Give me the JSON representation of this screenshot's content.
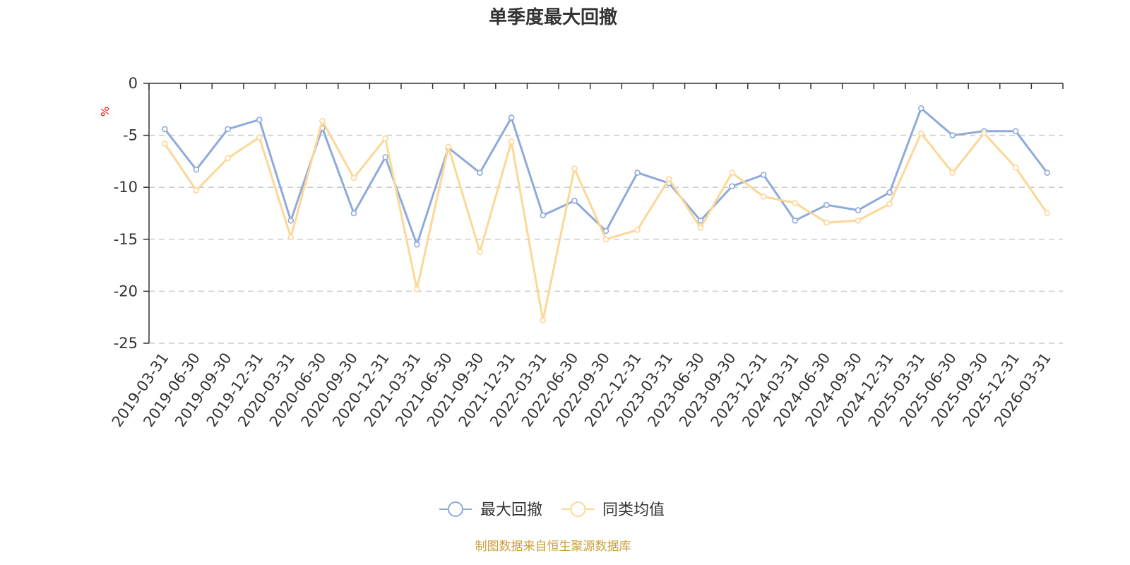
{
  "chart_data": {
    "type": "line",
    "title": "单季度最大回撤",
    "ylabel": "%",
    "ylim": [
      -25,
      0
    ],
    "yticks": [
      0,
      -5,
      -10,
      -15,
      -20,
      -25
    ],
    "grid": true,
    "legend_position": "bottom",
    "categories": [
      "2019-03-31",
      "2019-06-30",
      "2019-09-30",
      "2019-12-31",
      "2020-03-31",
      "2020-06-30",
      "2020-09-30",
      "2020-12-31",
      "2021-03-31",
      "2021-06-30",
      "2021-09-30",
      "2021-12-31",
      "2022-03-31",
      "2022-06-30",
      "2022-09-30",
      "2022-12-31",
      "2023-03-31",
      "2023-06-30",
      "2023-09-30",
      "2023-12-31",
      "2024-03-31",
      "2024-06-30",
      "2024-09-30",
      "2024-12-31",
      "2025-03-31",
      "2025-06-30",
      "2025-09-30",
      "2025-12-31",
      "2026-03-31"
    ],
    "series": [
      {
        "name": "最大回撤",
        "color": "#8EAADB",
        "values": [
          -4.4,
          -8.3,
          -4.4,
          -3.5,
          -13.2,
          -4.3,
          -12.5,
          -7.1,
          -15.5,
          -6.2,
          -8.6,
          -3.3,
          -12.7,
          -11.3,
          -14.2,
          -8.6,
          -9.6,
          -13.2,
          -9.9,
          -8.8,
          -13.2,
          -11.7,
          -12.2,
          -10.5,
          -2.4,
          -5.0,
          -4.6,
          -4.6,
          -8.6
        ]
      },
      {
        "name": "同类均值",
        "color": "#FCD796",
        "values": [
          -5.8,
          -10.3,
          -7.2,
          -5.2,
          -14.8,
          -3.6,
          -9.1,
          -5.3,
          -19.8,
          -6.1,
          -16.2,
          -5.6,
          -22.8,
          -8.2,
          -15.0,
          -14.1,
          -9.2,
          -13.9,
          -8.6,
          -10.9,
          -11.5,
          -13.4,
          -13.2,
          -11.6,
          -4.8,
          -8.6,
          -4.8,
          -8.1,
          -12.5
        ]
      }
    ]
  },
  "footer": {
    "source_text": "制图数据来自恒生聚源数据库"
  },
  "colors": {
    "unit_label": "#FF0000",
    "source_text": "#C9A03C",
    "text": "#333333"
  }
}
